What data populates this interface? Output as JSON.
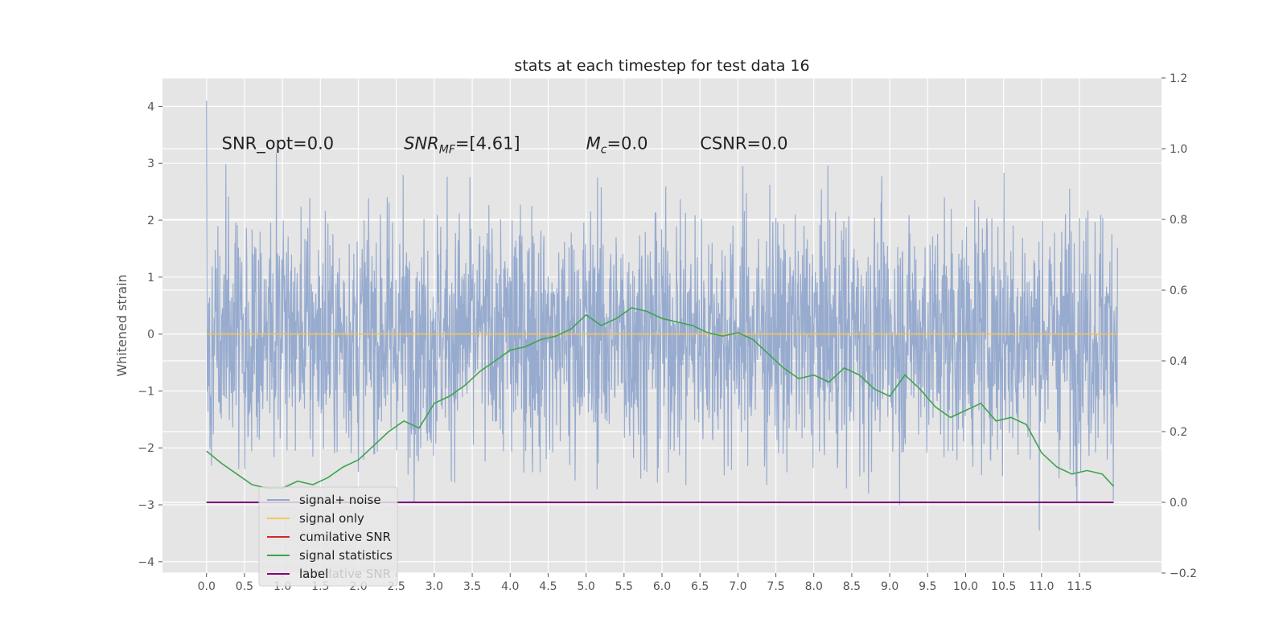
{
  "chart_data": {
    "type": "line",
    "title": "stats at each timestep for test data 16",
    "ylabel": "Whitened strain",
    "y2label": "",
    "xlabel": "",
    "xlim": [
      -0.58,
      12.58
    ],
    "ylim": [
      -4.2,
      4.5
    ],
    "y2lim": [
      -0.2,
      1.2
    ],
    "x_ticks": [
      "0.0",
      "0.5",
      "1.0",
      "1.5",
      "2.0",
      "2.5",
      "3.0",
      "3.5",
      "4.0",
      "4.5",
      "5.0",
      "5.5",
      "6.0",
      "6.5",
      "7.0",
      "7.5",
      "8.0",
      "8.5",
      "9.0",
      "9.5",
      "10.0",
      "10.5",
      "11.0",
      "11.5"
    ],
    "y_ticks": [
      "4",
      "3",
      "2",
      "1",
      "0",
      "−1",
      "−2",
      "−3",
      "−4"
    ],
    "y2_ticks": [
      "1.2",
      "1.0",
      "0.8",
      "0.6",
      "0.4",
      "0.2",
      "0.0",
      "−0.2"
    ],
    "grid": true,
    "legend_placement": "lower-left",
    "annotations": [
      {
        "text": "SNR_opt=0.0",
        "x": 0.2,
        "y": 3.35
      },
      {
        "text_main": "SNR",
        "text_sub": "MF",
        "text_rest": "=[4.61]",
        "x": 2.6,
        "y": 3.35
      },
      {
        "text_main": "M",
        "text_sub": "c",
        "text_rest": "=0.0",
        "x": 5.0,
        "y": 3.35
      },
      {
        "text": "CSNR=0.0",
        "x": 6.5,
        "y": 3.35
      }
    ],
    "legend": [
      {
        "label": "signal+ noise",
        "color": "#92a8cd"
      },
      {
        "label": "signal only",
        "color": "#f5c65a"
      },
      {
        "label": "cumilative SNR",
        "color": "#d62728"
      },
      {
        "label": "signal statistics",
        "color": "#3fa34d"
      },
      {
        "label": "label",
        "color": "#800080"
      }
    ],
    "legend_obscured_text": "cumilative SNR",
    "series": [
      {
        "name": "signal+ noise",
        "axis": "left",
        "color": "#92a8cd",
        "noise": true,
        "x_start": 0.0,
        "x_end": 12.0,
        "spread": 1.1,
        "max_abs": 4.15
      },
      {
        "name": "signal only",
        "axis": "left",
        "color": "#f5c65a",
        "x": [
          0.0,
          12.0
        ],
        "y": [
          0.0,
          0.0
        ]
      },
      {
        "name": "signal statistics",
        "axis": "right",
        "color": "#3fa34d",
        "x": [
          0.0,
          0.2,
          0.4,
          0.6,
          0.8,
          1.0,
          1.2,
          1.4,
          1.6,
          1.8,
          2.0,
          2.2,
          2.4,
          2.6,
          2.8,
          3.0,
          3.2,
          3.4,
          3.6,
          3.8,
          4.0,
          4.2,
          4.4,
          4.6,
          4.8,
          5.0,
          5.2,
          5.4,
          5.6,
          5.8,
          6.0,
          6.2,
          6.4,
          6.6,
          6.8,
          7.0,
          7.2,
          7.4,
          7.6,
          7.8,
          8.0,
          8.2,
          8.4,
          8.6,
          8.8,
          9.0,
          9.2,
          9.4,
          9.6,
          9.8,
          10.0,
          10.2,
          10.4,
          10.6,
          10.8,
          11.0,
          11.2,
          11.4,
          11.6,
          11.8,
          11.95
        ],
        "y": [
          0.145,
          0.11,
          0.08,
          0.05,
          0.04,
          0.04,
          0.06,
          0.05,
          0.07,
          0.1,
          0.12,
          0.16,
          0.2,
          0.23,
          0.21,
          0.28,
          0.3,
          0.33,
          0.37,
          0.4,
          0.43,
          0.44,
          0.46,
          0.47,
          0.49,
          0.53,
          0.5,
          0.52,
          0.55,
          0.54,
          0.52,
          0.51,
          0.5,
          0.48,
          0.47,
          0.48,
          0.46,
          0.42,
          0.38,
          0.35,
          0.36,
          0.34,
          0.38,
          0.36,
          0.32,
          0.3,
          0.36,
          0.32,
          0.27,
          0.24,
          0.26,
          0.28,
          0.23,
          0.24,
          0.22,
          0.14,
          0.1,
          0.08,
          0.09,
          0.08,
          0.045
        ]
      },
      {
        "name": "label",
        "axis": "right",
        "color": "#800080",
        "x": [
          0.0,
          11.95
        ],
        "y": [
          0.0,
          0.0
        ]
      }
    ],
    "colors": {
      "plot_bg": "#e5e5e5",
      "grid": "#ffffff",
      "noise": "#92a8cd",
      "signal": "#f5c65a",
      "snr": "#d62728",
      "stats": "#3fa34d",
      "label": "#800080"
    }
  }
}
